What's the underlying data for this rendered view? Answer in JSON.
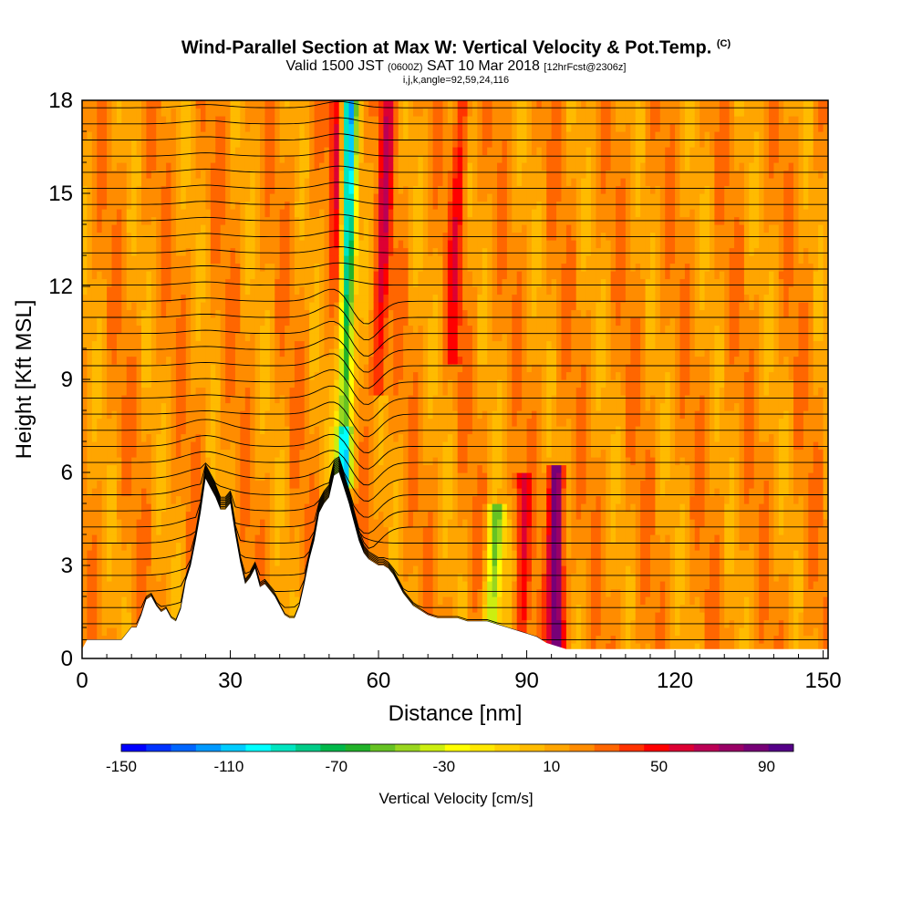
{
  "chart_data": {
    "type": "heatmap",
    "title": "Wind-Parallel Section at Max W: Vertical Velocity & Pot.Temp.",
    "title_mark": "(C)",
    "subtitle": {
      "pre": "Valid 1500 JST",
      "zulu": "(0600Z)",
      "mid": "SAT 10 Mar 2018",
      "fcst": "[12hrFcst@2306z]"
    },
    "subtitle2": "i,j,k,angle=92,59,24,116",
    "xlabel": "Distance [nm]",
    "ylabel": "Height [Kft MSL]",
    "xlim": [
      0,
      151
    ],
    "ylim": [
      0,
      18
    ],
    "xticks": [
      0,
      30,
      60,
      90,
      120,
      150
    ],
    "yticks": [
      0,
      3,
      6,
      9,
      12,
      15,
      18
    ],
    "grid": false,
    "colorbar": {
      "label": "Vertical Velocity [cm/s]",
      "tick_labels": [
        "-150",
        "-110",
        "-70",
        "-30",
        "10",
        "50",
        "90"
      ],
      "tick_values": [
        -150,
        -110,
        -70,
        -30,
        10,
        50,
        90
      ],
      "range": [
        -150,
        100
      ],
      "colors": [
        "#0000ff",
        "#0033ff",
        "#0066ff",
        "#0099ff",
        "#00ccff",
        "#00ffff",
        "#00e5c0",
        "#00cc88",
        "#00b84a",
        "#22b22a",
        "#66c223",
        "#99d61f",
        "#ccee10",
        "#ffff00",
        "#ffe800",
        "#ffd000",
        "#ffbb00",
        "#ffa500",
        "#ff8c00",
        "#ff6600",
        "#ff3300",
        "#ff0000",
        "#dd0033",
        "#bb0055",
        "#990066",
        "#770077",
        "#550088"
      ]
    },
    "terrain_profile": {
      "distance_nm": [
        0,
        1,
        3,
        5,
        8,
        10,
        11,
        12,
        13,
        14,
        15,
        16,
        17,
        18,
        19,
        20,
        21,
        22,
        23,
        24,
        25,
        26,
        27,
        28,
        29,
        30,
        31,
        32,
        33,
        34,
        35,
        36,
        37,
        38,
        39,
        40,
        41,
        42,
        43,
        44,
        45,
        46,
        47,
        48,
        49,
        50,
        51,
        52,
        53,
        54,
        55,
        56,
        57,
        58,
        59,
        60,
        61,
        62,
        63,
        64,
        65,
        66,
        67,
        68,
        69,
        70,
        72,
        74,
        76,
        78,
        80,
        82,
        84,
        86,
        88,
        90,
        92,
        94,
        96,
        98,
        100,
        151
      ],
      "height_kft": [
        0.3,
        0.6,
        0.6,
        0.6,
        0.6,
        1.0,
        1.0,
        1.4,
        1.9,
        2.0,
        1.7,
        1.5,
        1.6,
        1.3,
        1.2,
        1.6,
        2.5,
        3.0,
        3.8,
        4.7,
        5.8,
        5.5,
        5.2,
        4.8,
        4.8,
        5.0,
        4.0,
        3.1,
        2.4,
        2.6,
        2.9,
        2.3,
        2.4,
        2.2,
        2.0,
        1.7,
        1.4,
        1.3,
        1.3,
        1.7,
        2.4,
        3.2,
        3.8,
        4.7,
        5.0,
        5.2,
        5.9,
        6.0,
        5.5,
        5.0,
        4.4,
        3.8,
        3.4,
        3.2,
        3.1,
        3.0,
        3.0,
        2.9,
        2.7,
        2.4,
        2.1,
        1.9,
        1.7,
        1.6,
        1.5,
        1.4,
        1.3,
        1.3,
        1.3,
        1.2,
        1.2,
        1.2,
        1.1,
        1.0,
        0.9,
        0.8,
        0.7,
        0.5,
        0.4,
        0.3,
        0.3,
        0.3
      ]
    },
    "vertical_velocity_features": [
      {
        "name": "downdraft_lee_slope",
        "x_bottom": 53,
        "x_top": 54,
        "z_bottom": 5.8,
        "z_top": 18,
        "w_cm_s": -120
      },
      {
        "name": "updraft_wave_1",
        "x_bottom": 53,
        "x_top": 52,
        "z_bottom": 8,
        "z_top": 18,
        "w_cm_s": 70
      },
      {
        "name": "updraft_wave_2",
        "x_bottom": 60,
        "x_top": 62,
        "z_bottom": 9,
        "z_top": 18,
        "w_cm_s": 55
      },
      {
        "name": "updraft_wave_3",
        "x_bottom": 75,
        "x_top": 77,
        "z_bottom": 10,
        "z_top": 18,
        "w_cm_s": 45
      },
      {
        "name": "updraft_low_1",
        "x_bottom": 89,
        "x_top": 89,
        "z_bottom": 0.5,
        "z_top": 5.5,
        "w_cm_s": 50
      },
      {
        "name": "updraft_low_2",
        "x_bottom": 96,
        "x_top": 96,
        "z_bottom": 0.5,
        "z_top": 5.8,
        "w_cm_s": 95
      },
      {
        "name": "downdraft_low",
        "x_bottom": 83,
        "x_top": 84,
        "z_bottom": 1.5,
        "z_top": 4.5,
        "w_cm_s": -50
      }
    ]
  }
}
